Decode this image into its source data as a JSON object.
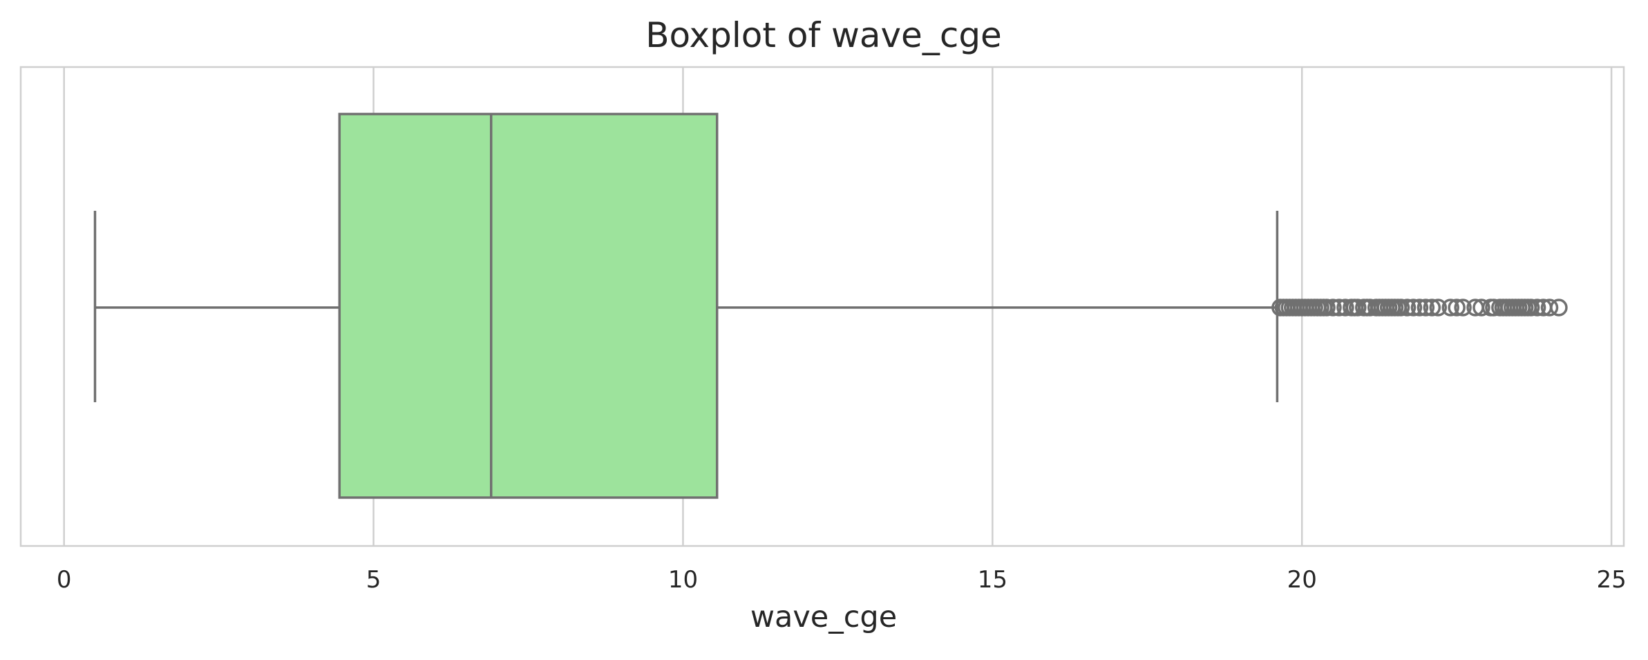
{
  "chart_data": {
    "type": "box",
    "title": "Boxplot of wave_cge",
    "xlabel": "wave_cge",
    "ylabel": "",
    "xlim": [
      -0.7,
      25.2
    ],
    "xticks": [
      0,
      5,
      10,
      15,
      20,
      25
    ],
    "tick_labels": [
      "0",
      "5",
      "10",
      "15",
      "20",
      "25"
    ],
    "grid": true,
    "orientation": "horizontal",
    "box": {
      "whisker_low": 0.5,
      "q1": 4.45,
      "median": 6.9,
      "q3": 10.55,
      "whisker_high": 19.6
    },
    "outliers": [
      19.65,
      19.7,
      19.75,
      19.8,
      19.85,
      19.9,
      19.95,
      20.0,
      20.05,
      20.1,
      20.15,
      20.2,
      20.25,
      20.3,
      20.35,
      20.4,
      20.5,
      20.6,
      20.7,
      20.8,
      20.85,
      20.9,
      21.0,
      21.05,
      21.1,
      21.2,
      21.25,
      21.3,
      21.35,
      21.4,
      21.45,
      21.5,
      21.55,
      21.6,
      21.7,
      21.8,
      21.9,
      22.0,
      22.1,
      22.2,
      22.4,
      22.5,
      22.6,
      22.8,
      22.9,
      23.05,
      23.1,
      23.2,
      23.25,
      23.3,
      23.35,
      23.4,
      23.45,
      23.5,
      23.55,
      23.6,
      23.65,
      23.7,
      23.8,
      23.9,
      24.0,
      24.15
    ],
    "colors": {
      "box_fill": "#9de39c",
      "line": "#707070",
      "grid": "#cfcfcf",
      "frame": "#cfcfcf"
    }
  }
}
